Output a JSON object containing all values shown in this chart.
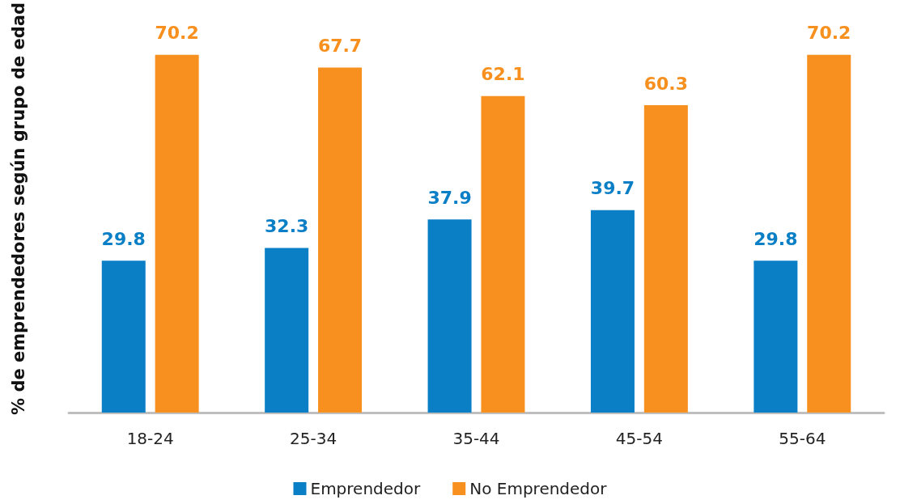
{
  "chart_data": {
    "type": "bar",
    "ylabel": "% de emprendedores según grupo de edad",
    "categories": [
      "18-24",
      "25-34",
      "35-44",
      "45-54",
      "55-64"
    ],
    "series": [
      {
        "name": "Emprendedor",
        "color": "#0a7fc6",
        "values": [
          29.8,
          32.3,
          37.9,
          39.7,
          29.8
        ]
      },
      {
        "name": "No Emprendedor",
        "color": "#f7901e",
        "values": [
          70.2,
          67.7,
          62.1,
          60.3,
          70.2
        ]
      }
    ],
    "data_labels": true,
    "legend": "bottom",
    "grid": false,
    "tick_labels": "x"
  }
}
